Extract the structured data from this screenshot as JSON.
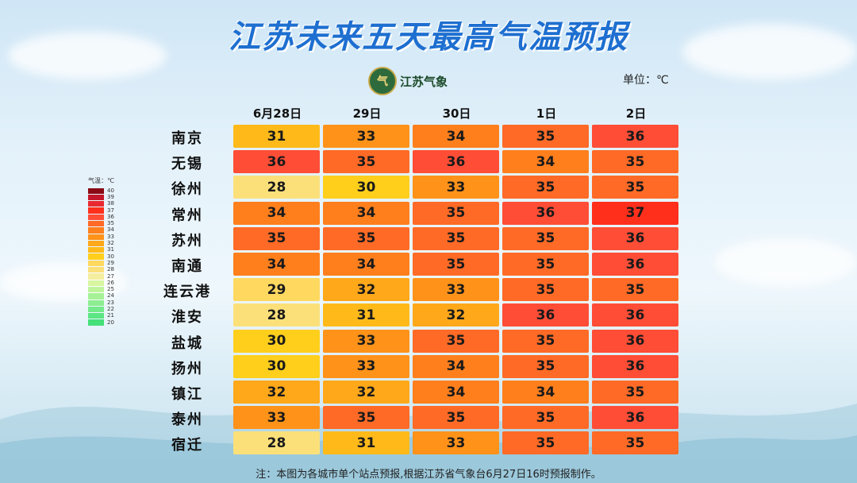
{
  "title": "江苏未来五天最高气温预报",
  "logo_text": "江苏气象",
  "logo_mark": "气",
  "unit_label": "单位：℃",
  "note": "注：本图为各城市单个站点预报,根据江苏省气象台6月27日16时预报制作。",
  "legend": {
    "title": "气温：℃",
    "levels": [
      40,
      39,
      38,
      37,
      36,
      35,
      34,
      33,
      32,
      31,
      30,
      29,
      28,
      27,
      26,
      25,
      24,
      23,
      22,
      21,
      20
    ]
  },
  "colors": {
    "20": "#44e07a",
    "21": "#5be683",
    "22": "#74ea8a",
    "23": "#8cee90",
    "24": "#a6f196",
    "25": "#bff49b",
    "26": "#d8f5a0",
    "27": "#f5ee9e",
    "28": "#fbe07a",
    "29": "#ffd860",
    "30": "#ffcf1c",
    "31": "#ffba1a",
    "32": "#ffa81a",
    "33": "#ff9219",
    "34": "#ff7f1d",
    "35": "#ff6a26",
    "36": "#ff4d36",
    "37": "#ff2f1c",
    "38": "#e82a30",
    "39": "#c4162a",
    "40": "#8a0a14"
  },
  "chart_data": {
    "type": "table",
    "title": "江苏未来五天最高气温预报",
    "columns": [
      "6月28日",
      "29日",
      "30日",
      "1日",
      "2日"
    ],
    "rows": [
      {
        "city": "南京",
        "values": [
          31,
          33,
          34,
          35,
          36
        ]
      },
      {
        "city": "无锡",
        "values": [
          36,
          35,
          36,
          34,
          35
        ]
      },
      {
        "city": "徐州",
        "values": [
          28,
          30,
          33,
          35,
          35
        ]
      },
      {
        "city": "常州",
        "values": [
          34,
          34,
          35,
          36,
          37
        ]
      },
      {
        "city": "苏州",
        "values": [
          35,
          35,
          35,
          35,
          36
        ]
      },
      {
        "city": "南通",
        "values": [
          34,
          34,
          35,
          35,
          36
        ]
      },
      {
        "city": "连云港",
        "values": [
          29,
          32,
          33,
          35,
          35
        ]
      },
      {
        "city": "淮安",
        "values": [
          28,
          31,
          32,
          36,
          36
        ]
      },
      {
        "city": "盐城",
        "values": [
          30,
          33,
          35,
          35,
          36
        ]
      },
      {
        "city": "扬州",
        "values": [
          30,
          33,
          34,
          35,
          36
        ]
      },
      {
        "city": "镇江",
        "values": [
          32,
          32,
          34,
          34,
          35
        ]
      },
      {
        "city": "泰州",
        "values": [
          33,
          35,
          35,
          35,
          36
        ]
      },
      {
        "city": "宿迁",
        "values": [
          28,
          31,
          33,
          35,
          35
        ]
      }
    ]
  }
}
